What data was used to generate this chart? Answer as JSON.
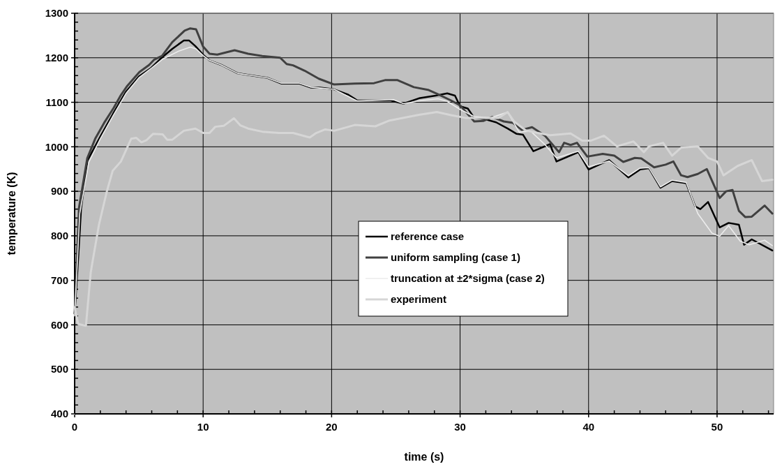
{
  "chart_data": {
    "type": "line",
    "xlabel": "time (s)",
    "ylabel": "temperature (K)",
    "xlim": [
      0,
      54.4
    ],
    "ylim": [
      400,
      1300
    ],
    "xticks": [
      0,
      {
        "value": 2,
        "label": null
      },
      {
        "value": 4,
        "label": null
      },
      {
        "value": 6,
        "label": null
      },
      {
        "value": 8,
        "label": null
      },
      10,
      {
        "value": 12,
        "label": null
      },
      {
        "value": 14,
        "label": null
      },
      {
        "value": 16,
        "label": null
      },
      {
        "value": 18,
        "label": null
      },
      20,
      {
        "value": 22,
        "label": null
      },
      {
        "value": 24,
        "label": null
      },
      {
        "value": 26,
        "label": null
      },
      {
        "value": 28,
        "label": null
      },
      30,
      {
        "value": 32,
        "label": null
      },
      {
        "value": 34,
        "label": null
      },
      {
        "value": 36,
        "label": null
      },
      {
        "value": 38,
        "label": null
      },
      40,
      {
        "value": 42,
        "label": null
      },
      {
        "value": 44,
        "label": null
      },
      {
        "value": 46,
        "label": null
      },
      {
        "value": 48,
        "label": null
      },
      50,
      {
        "value": 52,
        "label": null
      },
      {
        "value": 54,
        "label": null
      }
    ],
    "yticks": [
      400,
      {
        "value": 420,
        "label": null
      },
      {
        "value": 440,
        "label": null
      },
      {
        "value": 460,
        "label": null
      },
      {
        "value": 480,
        "label": null
      },
      500,
      {
        "value": 520,
        "label": null
      },
      {
        "value": 540,
        "label": null
      },
      {
        "value": 560,
        "label": null
      },
      {
        "value": 580,
        "label": null
      },
      600,
      {
        "value": 620,
        "label": null
      },
      {
        "value": 640,
        "label": null
      },
      {
        "value": 660,
        "label": null
      },
      {
        "value": 680,
        "label": null
      },
      700,
      {
        "value": 720,
        "label": null
      },
      {
        "value": 740,
        "label": null
      },
      {
        "value": 760,
        "label": null
      },
      {
        "value": 780,
        "label": null
      },
      800,
      {
        "value": 820,
        "label": null
      },
      {
        "value": 840,
        "label": null
      },
      {
        "value": 860,
        "label": null
      },
      {
        "value": 880,
        "label": null
      },
      900,
      {
        "value": 920,
        "label": null
      },
      {
        "value": 940,
        "label": null
      },
      {
        "value": 960,
        "label": null
      },
      {
        "value": 980,
        "label": null
      },
      1000,
      {
        "value": 1020,
        "label": null
      },
      {
        "value": 1040,
        "label": null
      },
      {
        "value": 1060,
        "label": null
      },
      {
        "value": 1080,
        "label": null
      },
      1100,
      {
        "value": 1120,
        "label": null
      },
      {
        "value": 1140,
        "label": null
      },
      {
        "value": 1160,
        "label": null
      },
      {
        "value": 1180,
        "label": null
      },
      1200,
      {
        "value": 1220,
        "label": null
      },
      {
        "value": 1240,
        "label": null
      },
      {
        "value": 1260,
        "label": null
      },
      {
        "value": 1280,
        "label": null
      },
      1300
    ],
    "grid": true,
    "legend": "center",
    "marker": "none",
    "line_style": "solid",
    "series": [
      {
        "name": "reference case",
        "color": "#000000",
        "x": [
          0,
          0.3,
          0.5,
          1,
          2,
          3,
          4,
          5,
          5.9,
          6.85,
          7.6,
          8.5,
          8.9,
          9.4,
          10,
          10.5,
          11.4,
          12.7,
          13.8,
          15,
          16.1,
          17.5,
          18.4,
          19.1,
          20.2,
          21.3,
          22,
          24.6,
          25.6,
          26.8,
          28.1,
          29,
          29.6,
          30,
          30.6,
          31.1,
          31.8,
          32.8,
          33.7,
          34.4,
          34.9,
          35.7,
          37,
          37.5,
          39.2,
          40,
          41.6,
          43.1,
          44,
          44.7,
          45.6,
          46.5,
          47.6,
          48.3,
          48.7,
          49.3,
          50.2,
          50.9,
          51.7,
          52.1,
          52.7,
          54.3
        ],
        "values": [
          625,
          760,
          860,
          969,
          1023,
          1075,
          1124,
          1158,
          1176,
          1202,
          1220,
          1239,
          1239,
          1226,
          1207,
          1194,
          1184,
          1165,
          1160,
          1155,
          1142,
          1142,
          1133,
          1133,
          1129,
          1117,
          1104,
          1104,
          1097,
          1109,
          1115,
          1120,
          1115,
          1091,
          1086,
          1065,
          1063,
          1055,
          1041,
          1029,
          1027,
          990,
          1006,
          967,
          988,
          949,
          970,
          931,
          949,
          952,
          908,
          923,
          918,
          866,
          860,
          876,
          819,
          829,
          825,
          780,
          792,
          767
        ]
      },
      {
        "name": "uniform sampling (case 1)",
        "color": "#404040",
        "x": [
          0,
          0.34,
          0.98,
          1.6,
          2.3,
          3.05,
          3.6,
          4.1,
          5.04,
          5.8,
          6.2,
          6.8,
          7.6,
          8.56,
          9,
          9.45,
          10,
          10.5,
          11.1,
          12.45,
          13.5,
          14.6,
          16,
          16.5,
          17,
          17.9,
          19,
          20.2,
          21.8,
          23.3,
          24.2,
          25.1,
          26.4,
          27.5,
          28.2,
          29.3,
          30,
          31.1,
          31.8,
          32.5,
          33.4,
          34.1,
          34.8,
          35.6,
          36.6,
          37.7,
          38.1,
          38.6,
          39.1,
          39.9,
          41.1,
          42,
          42.7,
          43.6,
          44.1,
          45.1,
          46,
          46.6,
          47.2,
          47.7,
          48.5,
          49.2,
          50.2,
          50.7,
          51.2,
          51.7,
          52.2,
          52.7,
          53.7,
          54.3
        ],
        "values": [
          625,
          863,
          974,
          1018,
          1054,
          1088,
          1116,
          1137,
          1168,
          1184,
          1196,
          1204,
          1235,
          1261,
          1266,
          1264,
          1225,
          1209,
          1207,
          1217,
          1209,
          1204,
          1200,
          1186,
          1183,
          1171,
          1153,
          1140,
          1142,
          1143,
          1150,
          1150,
          1134,
          1128,
          1119,
          1104,
          1093,
          1057,
          1058,
          1067,
          1057,
          1054,
          1038,
          1044,
          1025,
          988,
          1009,
          1004,
          1009,
          978,
          984,
          980,
          966,
          975,
          974,
          954,
          960,
          967,
          936,
          932,
          939,
          950,
          885,
          900,
          903,
          856,
          842,
          843,
          868,
          850
        ]
      },
      {
        "name": "truncation at ±2*sigma (case 2)",
        "color": "#ececec",
        "x": [
          0,
          0.4,
          1.1,
          2,
          3,
          4,
          5,
          6,
          6.85,
          8.1,
          9,
          9.45,
          10,
          10.5,
          11.4,
          12.7,
          13.8,
          15,
          16.1,
          17.5,
          18.4,
          19.1,
          20.2,
          22,
          24.8,
          25.6,
          27,
          28.3,
          29,
          30,
          31.1,
          32.4,
          33.7,
          34.6,
          35.5,
          36.6,
          37.5,
          39.2,
          40,
          41.6,
          43.1,
          44,
          44.7,
          45.6,
          46.5,
          47.6,
          48.5,
          49.6,
          50.2,
          50.9,
          51.8,
          52.5,
          53.7,
          54.3
        ],
        "values": [
          620,
          850,
          965,
          1018,
          1070,
          1120,
          1155,
          1177,
          1197,
          1215,
          1224,
          1220,
          1205,
          1194,
          1184,
          1165,
          1160,
          1155,
          1143,
          1143,
          1134,
          1132,
          1129,
          1103,
          1106,
          1097,
          1104,
          1108,
          1102,
          1084,
          1068,
          1065,
          1078,
          1033,
          1035,
          1005,
          975,
          990,
          955,
          968,
          935,
          952,
          953,
          910,
          925,
          920,
          850,
          806,
          799,
          823,
          788,
          780,
          790,
          778
        ]
      },
      {
        "name": "experiment",
        "color": "#d6d6d6",
        "x": [
          0,
          0.27,
          0.88,
          1.25,
          1.4,
          1.9,
          2.5,
          2.96,
          3.6,
          4.4,
          4.8,
          5.2,
          5.6,
          6.1,
          6.85,
          7.2,
          7.6,
          8.5,
          9.4,
          10,
          10.5,
          10.95,
          11.6,
          12.4,
          12.9,
          13.5,
          14.6,
          15.9,
          17,
          18.3,
          18.8,
          19.5,
          20.2,
          21.8,
          23.4,
          24.5,
          26.8,
          28.2,
          29.3,
          30.4,
          31.8,
          33,
          33.7,
          34.2,
          35.1,
          35.9,
          37,
          38.6,
          39.5,
          40.2,
          41.2,
          42.2,
          43.5,
          44.3,
          44.7,
          45.8,
          46.5,
          47.2,
          48.5,
          49.3,
          50,
          50.5,
          51.6,
          52.7,
          53.5,
          54.3
        ],
        "values": [
          640,
          602,
          598,
          717,
          743,
          826,
          899,
          946,
          967,
          1018,
          1020,
          1010,
          1015,
          1029,
          1028,
          1016,
          1016,
          1036,
          1041,
          1031,
          1031,
          1045,
          1047,
          1064,
          1048,
          1041,
          1034,
          1031,
          1031,
          1021,
          1031,
          1039,
          1036,
          1049,
          1046,
          1059,
          1072,
          1078,
          1071,
          1065,
          1065,
          1065,
          1078,
          1057,
          1037,
          1032,
          1026,
          1030,
          1014,
          1014,
          1025,
          1001,
          1012,
          988,
          1001,
          1009,
          980,
          998,
          1001,
          975,
          967,
          936,
          957,
          970,
          923,
          926
        ]
      }
    ]
  }
}
